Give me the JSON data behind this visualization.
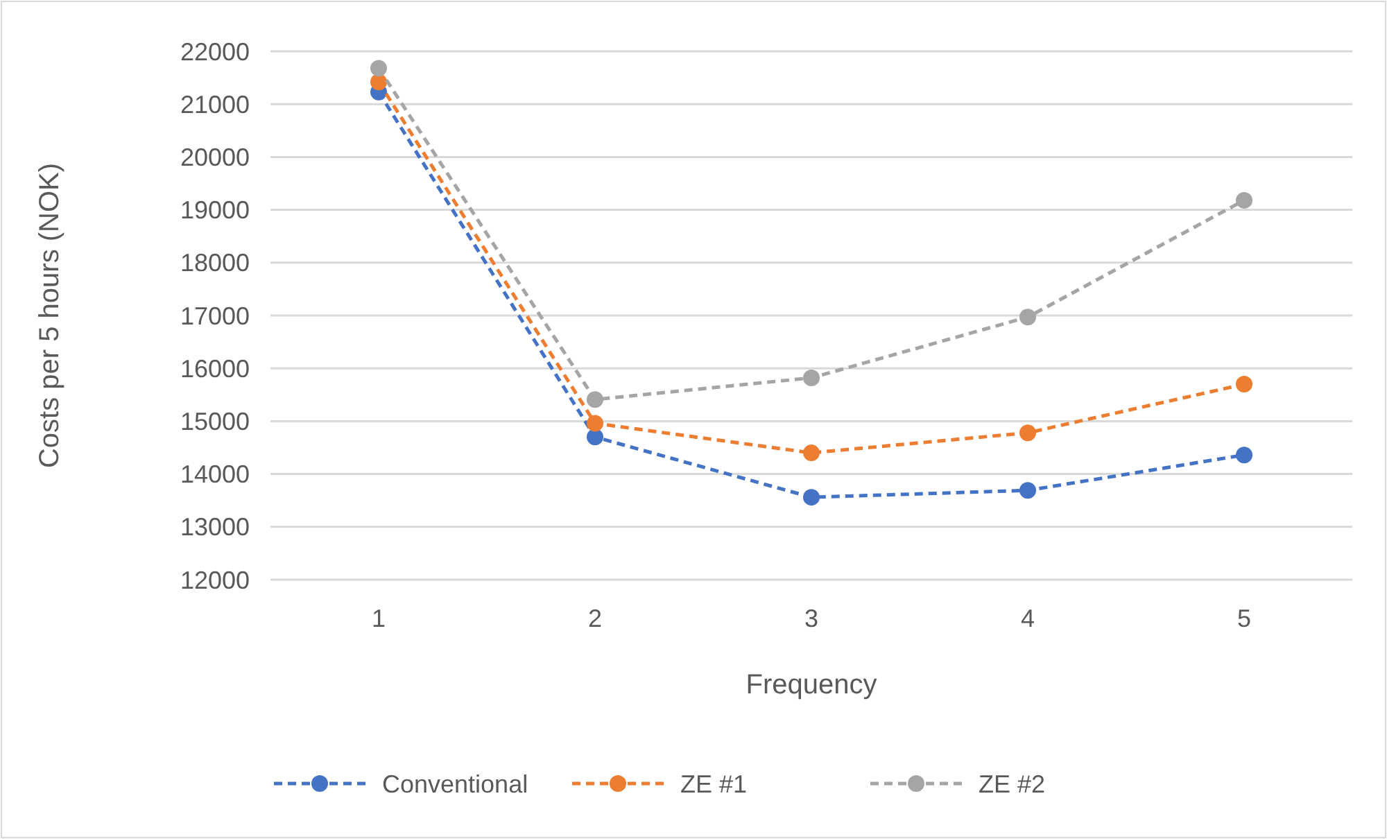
{
  "chart_data": {
    "type": "line",
    "xlabel": "Frequency",
    "ylabel": "Costs per 5 hours (NOK)",
    "categories": [
      "1",
      "2",
      "3",
      "4",
      "5"
    ],
    "series": [
      {
        "name": "Conventional",
        "color": "#4472c4",
        "values": [
          21230,
          14700,
          13560,
          13690,
          14360
        ]
      },
      {
        "name": "ZE #1",
        "color": "#ed7d31",
        "values": [
          21420,
          14960,
          14400,
          14780,
          15700
        ]
      },
      {
        "name": "ZE #2",
        "color": "#a5a5a5",
        "values": [
          21680,
          15410,
          15820,
          16970,
          19180
        ]
      }
    ],
    "ylim": [
      12000,
      22000
    ],
    "yticks": [
      12000,
      13000,
      14000,
      15000,
      16000,
      17000,
      18000,
      19000,
      20000,
      21000,
      22000
    ],
    "grid": "y",
    "legend": "bottom",
    "marker": "circle",
    "line_style": "dashed"
  }
}
